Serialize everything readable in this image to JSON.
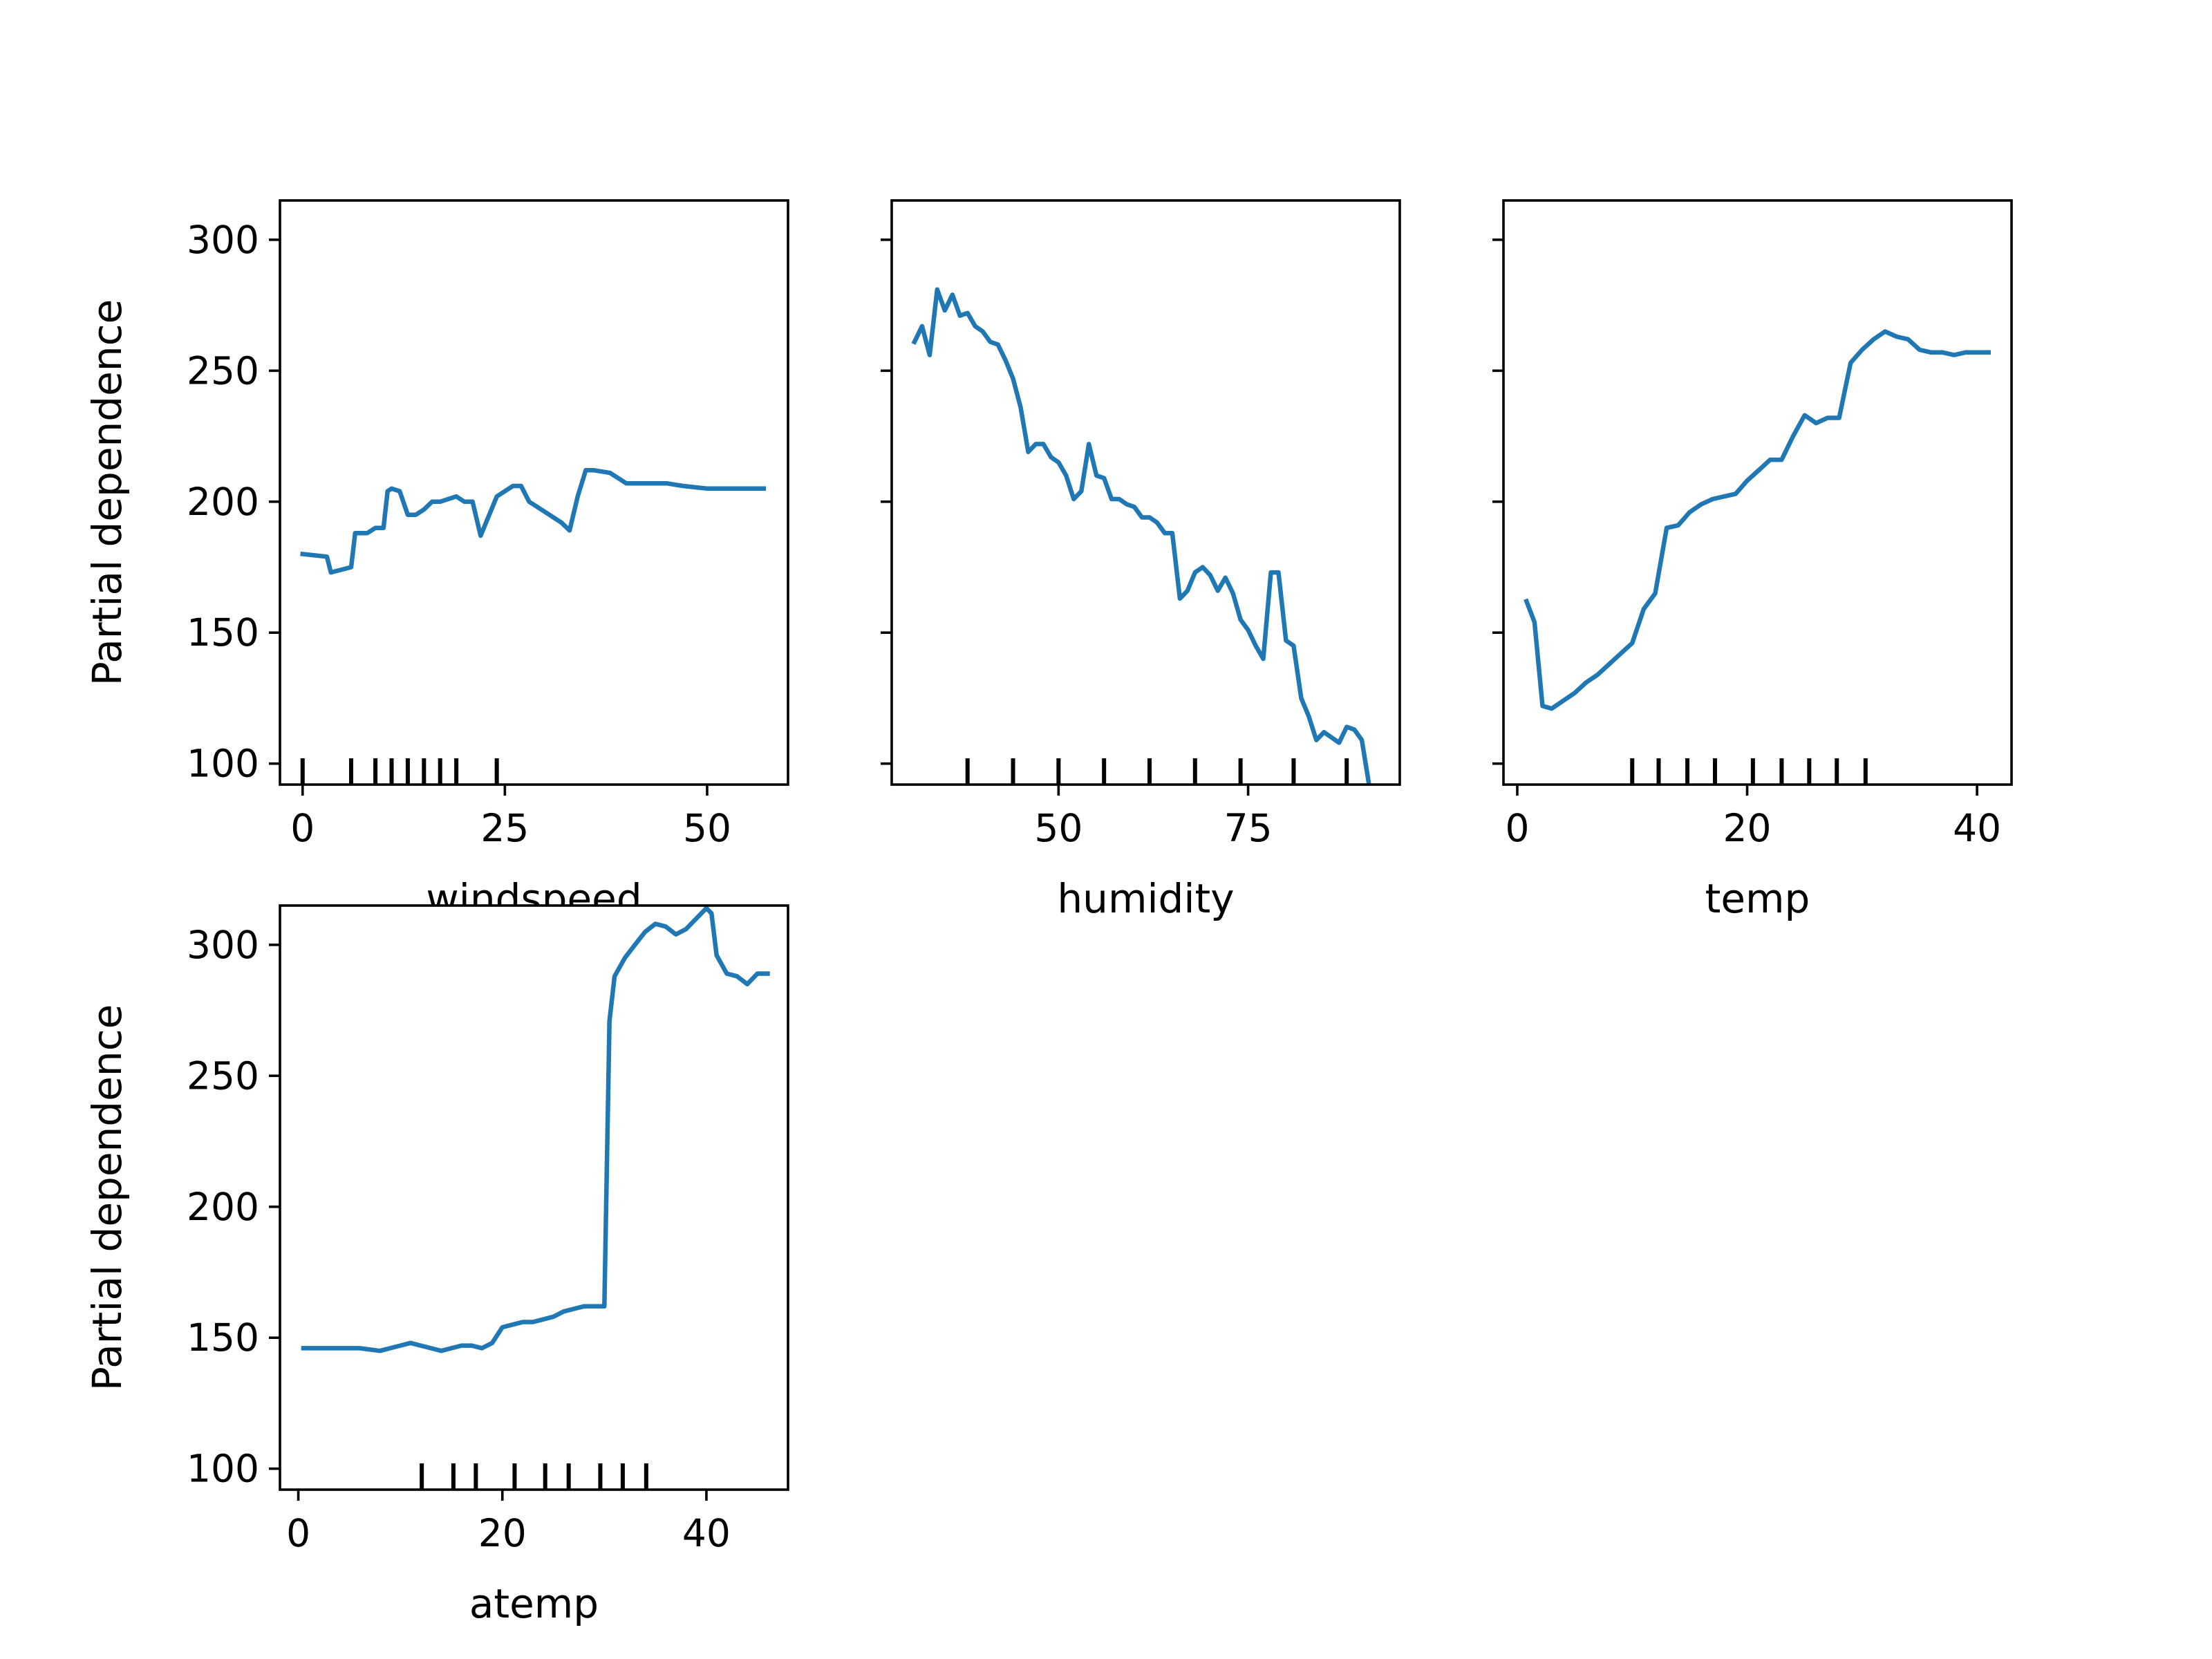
{
  "colors": {
    "line": "#1f77b4",
    "axes": "#000000",
    "rug": "#000000"
  },
  "chart_data": [
    {
      "type": "line",
      "xlabel": "windspeed",
      "ylabel": "Partial dependence",
      "xlim": [
        -2.8,
        60
      ],
      "ylim": [
        92,
        315
      ],
      "xticks": [
        0,
        25,
        50
      ],
      "yticks": [
        100,
        150,
        200,
        250,
        300
      ],
      "show_yticklabels": true,
      "rug": [
        0,
        6,
        9,
        11,
        13,
        15,
        17,
        19,
        24
      ],
      "x": [
        0,
        3,
        3.5,
        6,
        6.5,
        8,
        9,
        10,
        10.5,
        11,
        12,
        13,
        14,
        15,
        16,
        17,
        19,
        20,
        21,
        22,
        24,
        26,
        27,
        28,
        29,
        31,
        32,
        33,
        34,
        35,
        36,
        38,
        40,
        43,
        45,
        47,
        50,
        57
      ],
      "y": [
        180,
        179,
        173,
        175,
        188,
        188,
        190,
        190,
        204,
        205,
        204,
        195,
        195,
        197,
        200,
        200,
        202,
        200,
        200,
        187,
        202,
        206,
        206,
        200,
        198,
        194,
        192,
        189,
        202,
        212,
        212,
        211,
        207,
        207,
        207,
        206,
        205,
        205
      ]
    },
    {
      "type": "line",
      "xlabel": "humidity",
      "ylabel": "",
      "xlim": [
        28,
        95
      ],
      "ylim": [
        92,
        315
      ],
      "xticks": [
        50,
        75
      ],
      "yticks": [
        100,
        150,
        200,
        250,
        300
      ],
      "show_yticklabels": false,
      "rug": [
        38,
        44,
        50,
        56,
        62,
        68,
        74,
        81,
        88
      ],
      "x": [
        31,
        32,
        33,
        34,
        35,
        36,
        37,
        38,
        39,
        40,
        41,
        42,
        43,
        44,
        45,
        46,
        47,
        48,
        49,
        50,
        51,
        52,
        53,
        54,
        55,
        56,
        57,
        58,
        59,
        60,
        61,
        62,
        63,
        64,
        65,
        66,
        67,
        68,
        69,
        70,
        71,
        72,
        73,
        74,
        75,
        76,
        77,
        78,
        79,
        80,
        81,
        82,
        83,
        84,
        85,
        86,
        87,
        88,
        89,
        90,
        91,
        92
      ],
      "y": [
        261,
        267,
        256,
        281,
        273,
        279,
        271,
        272,
        267,
        265,
        261,
        260,
        254,
        247,
        236,
        219,
        222,
        222,
        217,
        215,
        210,
        201,
        204,
        222,
        210,
        209,
        201,
        201,
        199,
        198,
        194,
        194,
        192,
        188,
        188,
        163,
        166,
        173,
        175,
        172,
        166,
        171,
        165,
        155,
        151,
        145,
        140,
        173,
        173,
        147,
        145,
        125,
        118,
        109,
        112,
        110,
        108,
        114,
        113,
        109,
        91,
        90
      ]
    },
    {
      "type": "line",
      "xlabel": "temp",
      "ylabel": "",
      "xlim": [
        -1.2,
        43
      ],
      "ylim": [
        92,
        315
      ],
      "xticks": [
        0,
        20,
        40
      ],
      "yticks": [
        100,
        150,
        200,
        250,
        300
      ],
      "show_yticklabels": false,
      "rug": [
        10,
        12.3,
        14.8,
        17.2,
        20.5,
        23,
        25.4,
        27.8,
        30.3
      ],
      "x": [
        0.8,
        1.5,
        2.2,
        3,
        4,
        5,
        6,
        7,
        8,
        9,
        10,
        11,
        12,
        13,
        14,
        15,
        16,
        17,
        18,
        19,
        20,
        21,
        22,
        23,
        24,
        25,
        26,
        27,
        28,
        29,
        30,
        31,
        32,
        33,
        34,
        35,
        36,
        37,
        38,
        39,
        40,
        41
      ],
      "y": [
        162,
        154,
        122,
        121,
        124,
        127,
        131,
        134,
        138,
        142,
        146,
        159,
        165,
        190,
        191,
        196,
        199,
        201,
        202,
        203,
        208,
        212,
        216,
        216,
        225,
        233,
        230,
        232,
        232,
        253,
        258,
        262,
        265,
        263,
        262,
        258,
        257,
        257,
        256,
        257,
        257,
        257
      ]
    },
    {
      "type": "line",
      "xlabel": "atemp",
      "ylabel": "Partial dependence",
      "xlim": [
        -1.8,
        48
      ],
      "ylim": [
        92,
        315
      ],
      "xticks": [
        0,
        20,
        40
      ],
      "yticks": [
        100,
        150,
        200,
        250,
        300
      ],
      "show_yticklabels": true,
      "rug": [
        12.1,
        15.2,
        17.4,
        21.2,
        24.2,
        26.5,
        29.6,
        31.8,
        34.1
      ],
      "x": [
        0.5,
        2,
        4,
        6,
        8,
        9,
        10,
        11,
        12,
        13,
        14,
        15,
        16,
        17,
        18,
        19,
        20,
        21,
        22,
        23,
        24,
        25,
        26,
        27,
        28,
        29,
        30,
        30.5,
        31,
        32,
        33,
        34,
        35,
        36,
        37,
        38,
        39,
        40,
        40.5,
        41,
        42,
        43,
        44,
        45,
        46
      ],
      "y": [
        146,
        146,
        146,
        146,
        145,
        146,
        147,
        148,
        147,
        146,
        145,
        146,
        147,
        147,
        146,
        148,
        154,
        155,
        156,
        156,
        157,
        158,
        160,
        161,
        162,
        162,
        162,
        271,
        288,
        295,
        300,
        305,
        308,
        307,
        304,
        306,
        310,
        314,
        312,
        296,
        289,
        288,
        285,
        289,
        289
      ]
    }
  ]
}
